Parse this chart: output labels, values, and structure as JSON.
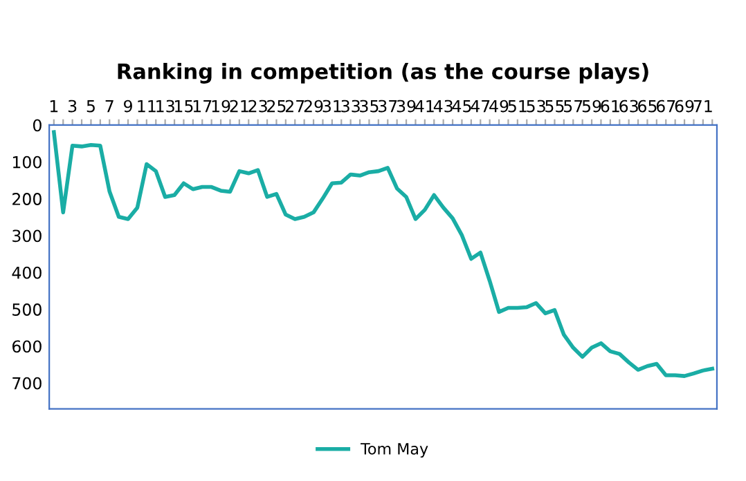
{
  "chart_data": {
    "type": "line",
    "title": "Ranking in competition (as the course plays)",
    "categories": [
      "1",
      null,
      "3",
      null,
      "5",
      null,
      "7",
      null,
      "9",
      null,
      "11",
      null,
      "13",
      null,
      "15",
      null,
      "17",
      null,
      "19",
      null,
      "21",
      null,
      "23",
      null,
      "25",
      null,
      "27",
      null,
      "29",
      null,
      "31",
      null,
      "33",
      null,
      "35",
      null,
      "37",
      null,
      "39",
      null,
      "41",
      null,
      "43",
      null,
      "45",
      null,
      "47",
      null,
      "49",
      null,
      "51",
      null,
      "53",
      null,
      "55",
      null,
      "57",
      null,
      "59",
      null,
      "61",
      null,
      "63",
      null,
      "65",
      null,
      "67",
      null,
      "69",
      null,
      "71",
      null
    ],
    "series": [
      {
        "name": "Tom May",
        "color": "#1aada5",
        "values": [
          19,
          237,
          56,
          58,
          54,
          56,
          180,
          249,
          255,
          224,
          106,
          125,
          195,
          190,
          158,
          174,
          168,
          168,
          178,
          181,
          125,
          131,
          122,
          195,
          187,
          243,
          255,
          249,
          237,
          199,
          158,
          156,
          134,
          137,
          128,
          125,
          116,
          172,
          195,
          255,
          230,
          190,
          224,
          253,
          299,
          363,
          346,
          423,
          507,
          496,
          496,
          494,
          483,
          511,
          502,
          569,
          604,
          629,
          604,
          592,
          614,
          621,
          644,
          664,
          654,
          648,
          679,
          679,
          681,
          674,
          666,
          661
        ]
      }
    ],
    "ylim": [
      770,
      0
    ],
    "yticks": [
      0,
      100,
      200,
      300,
      400,
      500,
      600,
      700
    ],
    "legend": "bottom",
    "marker": "none",
    "line_style": "solid"
  }
}
